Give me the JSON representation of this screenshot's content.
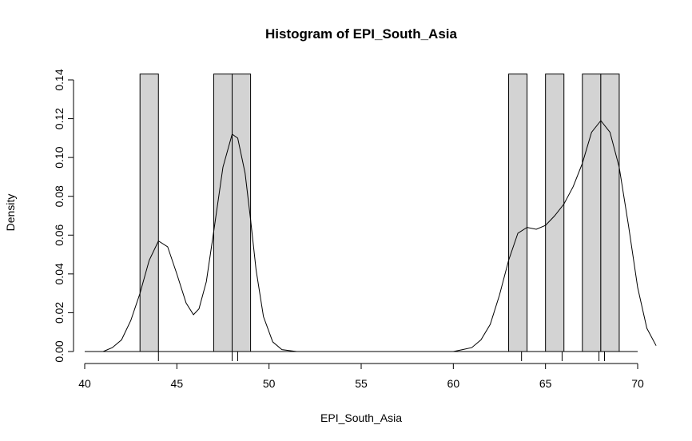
{
  "chart_data": {
    "type": "bar",
    "title": "Histogram of EPI_South_Asia",
    "xlabel": "EPI_South_Asia",
    "ylabel": "Density",
    "xlim": [
      40,
      71
    ],
    "ylim": [
      0,
      0.14
    ],
    "x_ticks": [
      40,
      45,
      50,
      55,
      60,
      65,
      70
    ],
    "x_tick_labels": [
      "40",
      "45",
      "50",
      "55",
      "60",
      "65",
      "70"
    ],
    "y_ticks": [
      0,
      0.02,
      0.04,
      0.06,
      0.08,
      0.1,
      0.12,
      0.14
    ],
    "y_tick_labels": [
      "0.00",
      "0.02",
      "0.04",
      "0.06",
      "0.08",
      "0.10",
      "0.12",
      "0.14"
    ],
    "bins": [
      {
        "start": 43,
        "end": 44,
        "density": 0.143
      },
      {
        "start": 47,
        "end": 48,
        "density": 0.143
      },
      {
        "start": 48,
        "end": 49,
        "density": 0.143
      },
      {
        "start": 63,
        "end": 64,
        "density": 0.143
      },
      {
        "start": 65,
        "end": 66,
        "density": 0.143
      },
      {
        "start": 67,
        "end": 68,
        "density": 0.143
      },
      {
        "start": 68,
        "end": 69,
        "density": 0.143
      }
    ],
    "rug": [
      44.0,
      48.0,
      48.3,
      63.7,
      65.9,
      67.9,
      68.2
    ],
    "density_curve": [
      [
        41.0,
        0.0
      ],
      [
        41.5,
        0.002
      ],
      [
        42.0,
        0.006
      ],
      [
        42.5,
        0.016
      ],
      [
        43.0,
        0.03
      ],
      [
        43.5,
        0.047
      ],
      [
        44.0,
        0.057
      ],
      [
        44.5,
        0.054
      ],
      [
        45.0,
        0.04
      ],
      [
        45.5,
        0.025
      ],
      [
        45.9,
        0.019
      ],
      [
        46.2,
        0.022
      ],
      [
        46.6,
        0.036
      ],
      [
        47.0,
        0.062
      ],
      [
        47.5,
        0.095
      ],
      [
        48.0,
        0.112
      ],
      [
        48.3,
        0.11
      ],
      [
        48.7,
        0.092
      ],
      [
        49.0,
        0.068
      ],
      [
        49.3,
        0.042
      ],
      [
        49.7,
        0.018
      ],
      [
        50.2,
        0.005
      ],
      [
        50.7,
        0.001
      ],
      [
        51.5,
        0.0
      ],
      [
        52.0,
        0.0
      ],
      [
        60.0,
        0.0
      ],
      [
        60.5,
        0.001
      ],
      [
        61.0,
        0.002
      ],
      [
        61.5,
        0.006
      ],
      [
        62.0,
        0.014
      ],
      [
        62.5,
        0.029
      ],
      [
        63.0,
        0.047
      ],
      [
        63.5,
        0.061
      ],
      [
        64.0,
        0.064
      ],
      [
        64.5,
        0.063
      ],
      [
        65.0,
        0.065
      ],
      [
        65.5,
        0.07
      ],
      [
        66.0,
        0.076
      ],
      [
        66.5,
        0.085
      ],
      [
        67.0,
        0.097
      ],
      [
        67.5,
        0.113
      ],
      [
        68.0,
        0.119
      ],
      [
        68.5,
        0.113
      ],
      [
        69.0,
        0.095
      ],
      [
        69.5,
        0.065
      ],
      [
        70.0,
        0.033
      ],
      [
        70.5,
        0.012
      ],
      [
        71.0,
        0.003
      ]
    ],
    "grid": false,
    "colors": {
      "bar_fill": "#d3d3d3",
      "stroke": "#000000",
      "background": "#ffffff"
    }
  }
}
